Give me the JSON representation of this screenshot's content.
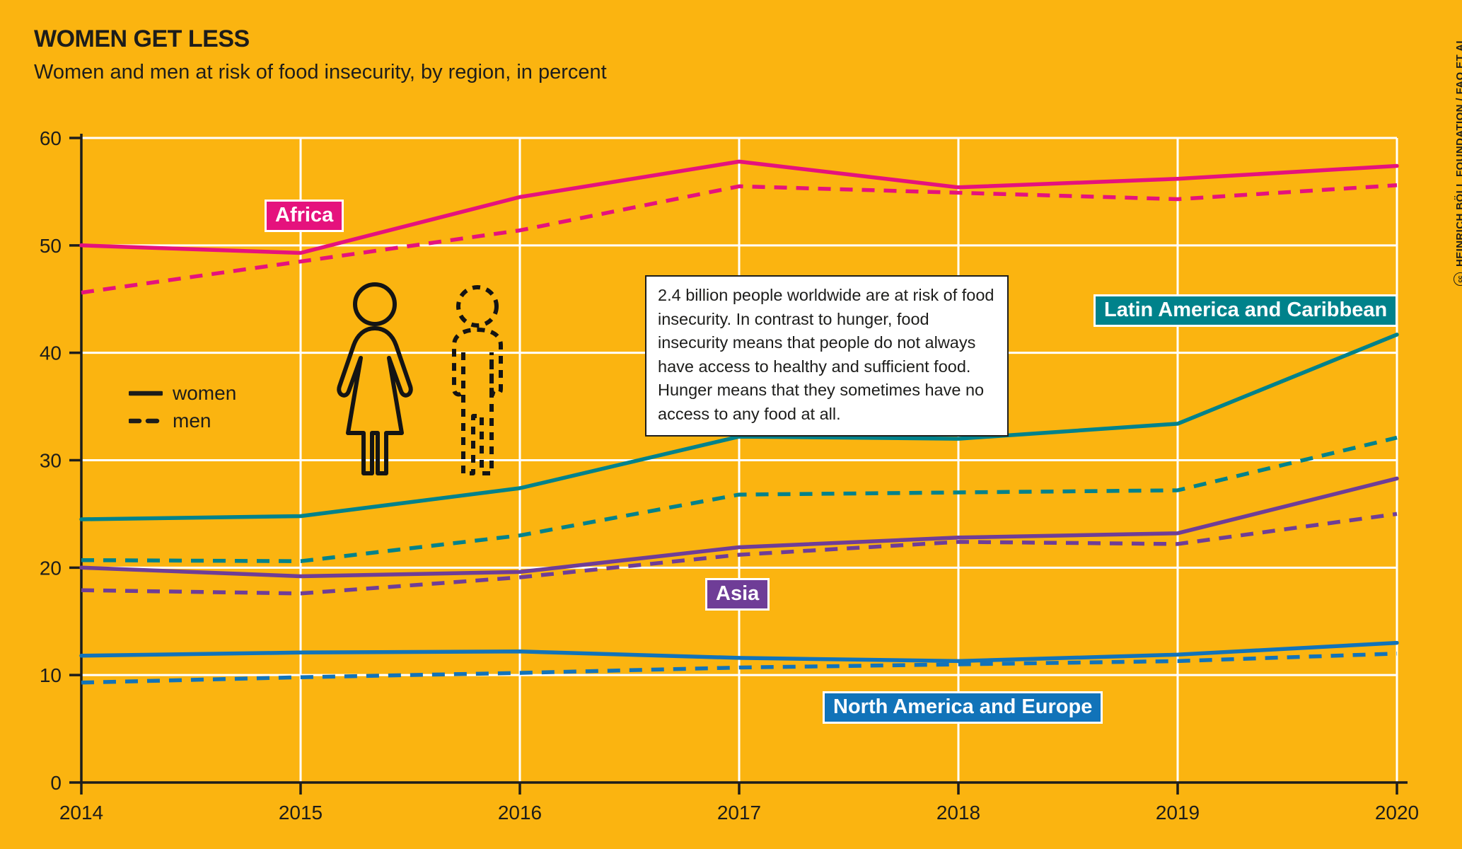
{
  "header": {
    "title": "WOMEN GET LESS",
    "subtitle": "Women and men at risk of food insecurity, by region, in percent"
  },
  "attribution": {
    "cc_label": "cc",
    "text": "HEINRICH BÖLL FOUNDATION / FAO ET AL"
  },
  "legend": {
    "women_label": "women",
    "men_label": "men"
  },
  "info_box": {
    "text": "2.4 billion people worldwide are at risk of food insecurity. In contrast to hunger, food insecurity means that people do not always have access to healthy and sufficient food. Hunger means that they sometimes have no access to any food at all."
  },
  "colors": {
    "background": "#fbb410",
    "africa": "#e5127d",
    "latin_america_caribbean": "#00828b",
    "asia": "#6f3d97",
    "north_america_europe": "#1173b9",
    "axis_black": "#1d1d1b",
    "gridline_white": "#ffffff"
  },
  "chart_data": {
    "type": "line",
    "x": [
      2014,
      2015,
      2016,
      2017,
      2018,
      2019,
      2020
    ],
    "ylim": [
      0,
      60
    ],
    "yticks": [
      0,
      10,
      20,
      30,
      40,
      50,
      60
    ],
    "grid": true,
    "legend_position": "left-middle",
    "series": [
      {
        "name": "Africa – women",
        "region": "Africa",
        "sex": "women",
        "style": "solid",
        "color": "#e5127d",
        "values": [
          50.0,
          49.3,
          54.5,
          57.8,
          55.4,
          56.2,
          57.4
        ]
      },
      {
        "name": "Africa – men",
        "region": "Africa",
        "sex": "men",
        "style": "dashed",
        "color": "#e5127d",
        "values": [
          45.6,
          48.5,
          51.4,
          55.5,
          54.9,
          54.3,
          55.6
        ]
      },
      {
        "name": "Latin America and Caribbean – women",
        "region": "Latin America and Caribbean",
        "sex": "women",
        "style": "solid",
        "color": "#00828b",
        "values": [
          24.5,
          24.8,
          27.4,
          32.2,
          32.0,
          33.4,
          41.7
        ]
      },
      {
        "name": "Latin America and Caribbean – men",
        "region": "Latin America and Caribbean",
        "sex": "men",
        "style": "dashed",
        "color": "#00828b",
        "values": [
          20.7,
          20.6,
          23.0,
          26.8,
          27.0,
          27.2,
          32.1
        ]
      },
      {
        "name": "Asia – women",
        "region": "Asia",
        "sex": "women",
        "style": "solid",
        "color": "#6f3d97",
        "values": [
          20.0,
          19.2,
          19.6,
          21.9,
          22.8,
          23.2,
          28.3
        ]
      },
      {
        "name": "Asia – men",
        "region": "Asia",
        "sex": "men",
        "style": "dashed",
        "color": "#6f3d97",
        "values": [
          17.9,
          17.6,
          19.1,
          21.2,
          22.4,
          22.2,
          25.0
        ]
      },
      {
        "name": "North America and Europe – women",
        "region": "North America and Europe",
        "sex": "women",
        "style": "solid",
        "color": "#1173b9",
        "values": [
          11.8,
          12.1,
          12.2,
          11.6,
          11.3,
          11.9,
          13.0
        ]
      },
      {
        "name": "North America and Europe – men",
        "region": "North America and Europe",
        "sex": "men",
        "style": "dashed",
        "color": "#1173b9",
        "values": [
          9.3,
          9.8,
          10.2,
          10.7,
          11.0,
          11.3,
          12.0
        ]
      }
    ],
    "region_labels": [
      {
        "label": "Africa"
      },
      {
        "label": "Latin America and Caribbean"
      },
      {
        "label": "Asia"
      },
      {
        "label": "North America and Europe"
      }
    ]
  }
}
